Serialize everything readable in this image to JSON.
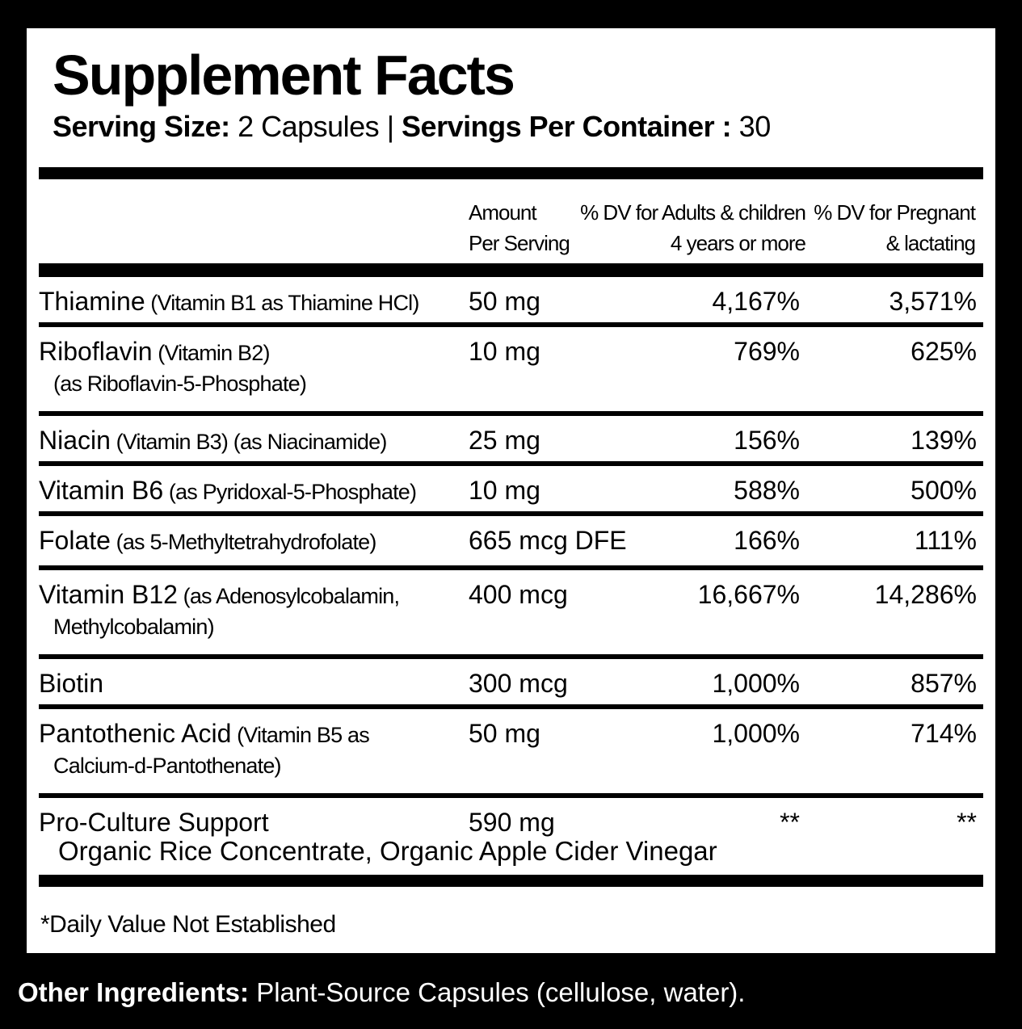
{
  "title": "Supplement Facts",
  "serving": {
    "size_label": "Serving Size:",
    "size_value": " 2 Capsules | ",
    "per_container_label": "Servings Per Container :",
    "per_container_value": " 30"
  },
  "header": {
    "amount": [
      "Amount",
      "Per Serving"
    ],
    "dv_adults": [
      "% DV for Adults & children",
      "4 years or more"
    ],
    "dv_pregnant": [
      "% DV for Pregnant",
      "& lactating"
    ]
  },
  "rows": [
    {
      "name": "Thiamine",
      "detail": [
        " (Vitamin B1 as Thiamine HCl)"
      ],
      "amount": "50 mg",
      "dv_adults": "4,167%",
      "dv_pregnant": "3,571%"
    },
    {
      "name": "Riboflavin",
      "detail": [
        " (Vitamin B2)",
        "(as Riboflavin-5-Phosphate)"
      ],
      "amount": "10 mg",
      "dv_adults": "769%",
      "dv_pregnant": "625%"
    },
    {
      "name": "Niacin",
      "detail": [
        " (Vitamin B3) (as Niacinamide)"
      ],
      "amount": "25 mg",
      "dv_adults": "156%",
      "dv_pregnant": "139%"
    },
    {
      "name": "Vitamin B6",
      "detail": [
        " (as Pyridoxal-5-Phosphate)"
      ],
      "amount": "10 mg",
      "dv_adults": "588%",
      "dv_pregnant": "500%"
    },
    {
      "name": "Folate",
      "detail": [
        " (as 5-Methyltetrahydrofolate)"
      ],
      "amount": "665 mcg DFE",
      "dv_adults": "166%",
      "dv_pregnant": "111%"
    },
    {
      "name": "Vitamin B12",
      "detail": [
        " (as Adenosylcobalamin,",
        "Methylcobalamin)"
      ],
      "amount": "400 mcg",
      "dv_adults": "16,667%",
      "dv_pregnant": "14,286%"
    },
    {
      "name": "Biotin",
      "detail": [],
      "amount": "300 mcg",
      "dv_adults": "1,000%",
      "dv_pregnant": "857%"
    },
    {
      "name": "Pantothenic Acid",
      "detail": [
        " (Vitamin B5 as",
        "Calcium-d-Pantothenate)"
      ],
      "amount": "50 mg",
      "dv_adults": "1,000%",
      "dv_pregnant": "714%"
    },
    {
      "name": "Pro-Culture Support",
      "detail": [],
      "sub": "Organic Rice Concentrate, Organic Apple Cider Vinegar",
      "amount": "590 mg",
      "dv_adults": "**",
      "dv_pregnant": "**"
    }
  ],
  "footnote": "*Daily Value Not Established",
  "other_ingredients": {
    "label": "Other Ingredients:",
    "text": " Plant-Source Capsules (cellulose, water)."
  }
}
